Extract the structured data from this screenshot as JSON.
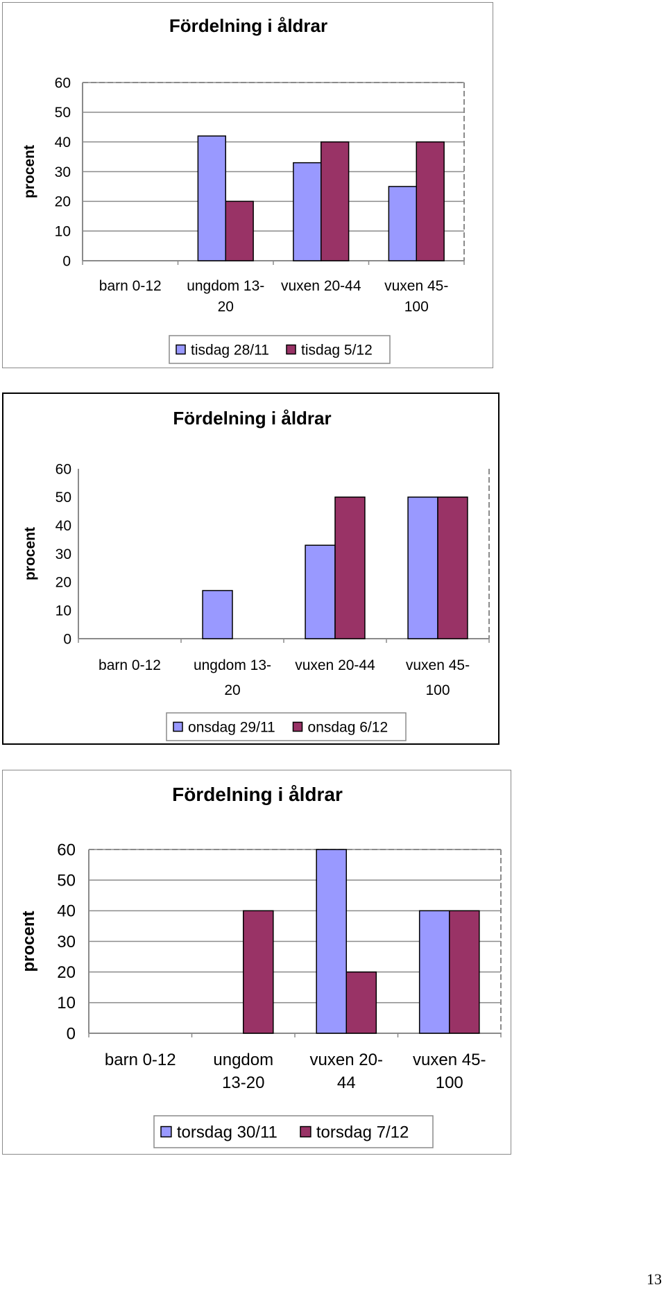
{
  "colors": {
    "series_a": "#9999ff",
    "series_b": "#993366",
    "grid": "#8a8a8a",
    "axis": "#8a8a8a"
  },
  "chart_data": [
    {
      "type": "bar",
      "title": "Fördelning i åldrar",
      "ylabel": "procent",
      "ylim": [
        0,
        60
      ],
      "yticks": [
        0,
        10,
        20,
        30,
        40,
        50,
        60
      ],
      "categories": [
        "barn 0-12",
        "ungdom 13-20",
        "vuxen 20-44",
        "vuxen 45-100"
      ],
      "category_label_lines": [
        [
          "barn 0-12"
        ],
        [
          "ungdom 13-",
          "20"
        ],
        [
          "vuxen 20-44"
        ],
        [
          "vuxen 45-",
          "100"
        ]
      ],
      "series": [
        {
          "name": "tisdag 28/11",
          "values": [
            0,
            42,
            33,
            25
          ]
        },
        {
          "name": "tisdag 5/12",
          "values": [
            0,
            20,
            40,
            40
          ]
        }
      ],
      "grid": true,
      "legend": "bottom"
    },
    {
      "type": "bar",
      "title": "Fördelning i åldrar",
      "ylabel": "procent",
      "ylim": [
        0,
        60
      ],
      "yticks": [
        0,
        10,
        20,
        30,
        40,
        50,
        60
      ],
      "categories": [
        "barn 0-12",
        "ungdom 13-20",
        "vuxen 20-44",
        "vuxen 45-100"
      ],
      "category_label_lines": [
        [
          "barn 0-12"
        ],
        [
          "ungdom 13-",
          "20"
        ],
        [
          "vuxen 20-44"
        ],
        [
          "vuxen 45-",
          "100"
        ]
      ],
      "series": [
        {
          "name": "onsdag 29/11",
          "values": [
            0,
            17,
            33,
            50
          ]
        },
        {
          "name": "onsdag 6/12",
          "values": [
            0,
            0,
            50,
            50
          ]
        }
      ],
      "grid": false,
      "legend": "bottom"
    },
    {
      "type": "bar",
      "title": "Fördelning i åldrar",
      "ylabel": "procent",
      "ylim": [
        0,
        60
      ],
      "yticks": [
        0,
        10,
        20,
        30,
        40,
        50,
        60
      ],
      "categories": [
        "barn 0-12",
        "ungdom 13-20",
        "vuxen 20-44",
        "vuxen 45-100"
      ],
      "category_label_lines": [
        [
          "barn 0-12"
        ],
        [
          "ungdom",
          "13-20"
        ],
        [
          "vuxen 20-",
          "44"
        ],
        [
          "vuxen 45-",
          "100"
        ]
      ],
      "series": [
        {
          "name": "torsdag 30/11",
          "values": [
            0,
            0,
            60,
            40
          ]
        },
        {
          "name": "torsdag 7/12",
          "values": [
            0,
            40,
            20,
            40
          ]
        }
      ],
      "grid": true,
      "legend": "bottom"
    }
  ],
  "page_number": "13"
}
